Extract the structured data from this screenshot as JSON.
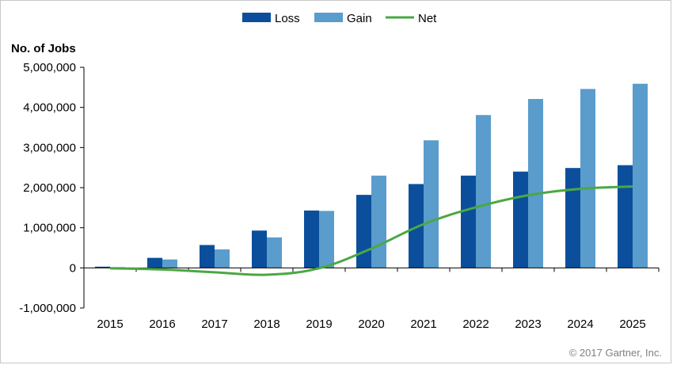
{
  "chart_data": {
    "type": "bar",
    "title": "",
    "ylabel": "No. of Jobs",
    "xlabel": "",
    "categories": [
      "2015",
      "2016",
      "2017",
      "2018",
      "2019",
      "2020",
      "2021",
      "2022",
      "2023",
      "2024",
      "2025"
    ],
    "series": [
      {
        "name": "Loss",
        "type": "bar",
        "color": "#0b4f9c",
        "values": [
          30000,
          250000,
          570000,
          930000,
          1430000,
          1820000,
          2090000,
          2300000,
          2400000,
          2490000,
          2560000
        ]
      },
      {
        "name": "Gain",
        "type": "bar",
        "color": "#5a9ccc",
        "values": [
          20000,
          210000,
          460000,
          760000,
          1420000,
          2300000,
          3180000,
          3810000,
          4210000,
          4460000,
          4590000
        ]
      },
      {
        "name": "Net",
        "type": "line",
        "color": "#4aa843",
        "values": [
          -10000,
          -40000,
          -110000,
          -170000,
          -10000,
          480000,
          1090000,
          1510000,
          1810000,
          1970000,
          2030000
        ]
      }
    ],
    "ylim": [
      -1000000,
      5000000
    ],
    "yticks": [
      -1000000,
      0,
      1000000,
      2000000,
      3000000,
      4000000,
      5000000
    ],
    "ytick_labels": [
      "-1,000,000",
      "0",
      "1,000,000",
      "2,000,000",
      "3,000,000",
      "4,000,000",
      "5,000,000"
    ],
    "legend_position": "top-center",
    "grid": false
  },
  "copyright": "© 2017 Gartner, Inc."
}
